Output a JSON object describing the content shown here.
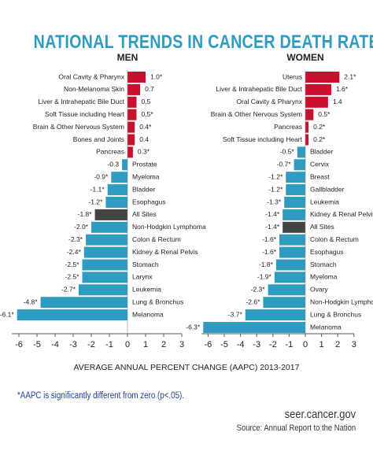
{
  "title": "NATIONAL TRENDS IN CANCER DEATH RATES",
  "colors": {
    "increase": "#c8102e",
    "decrease": "#2e9bc1",
    "all_sites": "#444444",
    "title": "#2e9bc1",
    "footnote": "#1f3f8f"
  },
  "chart_data": [
    {
      "type": "bar",
      "orientation": "horizontal",
      "title": "MEN",
      "xlabel": "AVERAGE ANNUAL PERCENT CHANGE (AAPC) 2013-2017",
      "xlim": [
        -6.5,
        3
      ],
      "xticks": [
        "-6",
        "-5",
        "-4",
        "-3",
        "-2",
        "-1",
        "0",
        "1",
        "2",
        "3"
      ],
      "categories": [
        "Oral Cavity & Pharynx",
        "Non-Melanoma Skin",
        "Liver & Intrahepatic Bile Duct",
        "Soft Tissue including Heart",
        "Brain & Other Nervous System",
        "Bones and Joints",
        "Pancreas",
        "Prostate",
        "Myeloma",
        "Bladder",
        "Esophagus",
        "All Sites",
        "Non-Hodgkin Lymphoma",
        "Colon & Rectum",
        "Kidney & Renal Pelvis",
        "Stomach",
        "Larynx",
        "Leukemia",
        "Lung & Bronchus",
        "Melanoma"
      ],
      "values": [
        1.0,
        0.7,
        0.5,
        0.5,
        0.4,
        0.4,
        0.3,
        -0.3,
        -0.9,
        -1.1,
        -1.2,
        -1.8,
        -2.0,
        -2.3,
        -2.4,
        -2.5,
        -2.5,
        -2.7,
        -4.8,
        -6.1
      ],
      "labels": [
        "1.0*",
        "0.7",
        "0.5",
        "0.5*",
        "0.4*",
        "0.4",
        "0.3*",
        "-0.3",
        "-0.9*",
        "-1.1*",
        "-1.2*",
        "-1.8*",
        "-2.0*",
        "-2.3*",
        "-2.4*",
        "-2.5*",
        "-2.5*",
        "-2.7*",
        "-4.8*",
        "-6.1*"
      ],
      "highlight": "All Sites"
    },
    {
      "type": "bar",
      "orientation": "horizontal",
      "title": "WOMEN",
      "xlabel": "AVERAGE ANNUAL PERCENT CHANGE (AAPC) 2013-2017",
      "xlim": [
        -6.5,
        3
      ],
      "xticks": [
        "-6",
        "-5",
        "-4",
        "-3",
        "-2",
        "-1",
        "0",
        "1",
        "2",
        "3"
      ],
      "categories": [
        "Uterus",
        "Liver & Intrahepatic Bile Duct",
        "Oral Cavity & Pharynx",
        "Brain & Other Nervous System",
        "Pancreas",
        "Soft Tissue including Heart",
        "Bladder",
        "Cervix",
        "Breast",
        "Gallbladder",
        "Leukemia",
        "Kidney & Renal Pelvis",
        "All Sites",
        "Colon & Rectum",
        "Esophagus",
        "Stomach",
        "Myeloma",
        "Ovary",
        "Non-Hodgkin Lymphoma",
        "Lung & Bronchus",
        "Melanoma"
      ],
      "values": [
        2.1,
        1.6,
        1.4,
        0.5,
        0.2,
        0.2,
        -0.5,
        -0.7,
        -1.2,
        -1.2,
        -1.3,
        -1.4,
        -1.4,
        -1.6,
        -1.6,
        -1.8,
        -1.9,
        -2.3,
        -2.6,
        -3.7,
        -6.3
      ],
      "labels": [
        "2.1*",
        "1.6*",
        "1.4",
        "0.5*",
        "0.2*",
        "0.2*",
        "-0.5*",
        "-0.7*",
        "-1.2*",
        "-1.2*",
        "-1.3*",
        "-1.4*",
        "-1.4*",
        "-1.6*",
        "-1.6*",
        "-1.8*",
        "-1.9*",
        "-2.3*",
        "-2.6*",
        "-3.7*",
        "-6.3*"
      ],
      "highlight": "All Sites"
    }
  ],
  "axis_title": "AVERAGE ANNUAL PERCENT CHANGE (AAPC) 2013-2017",
  "footnote": "*AAPC is significantly different from zero (p<.05).",
  "source": {
    "site": "seer.cancer.gov",
    "line": "Source: Annual Report to the Nation"
  }
}
